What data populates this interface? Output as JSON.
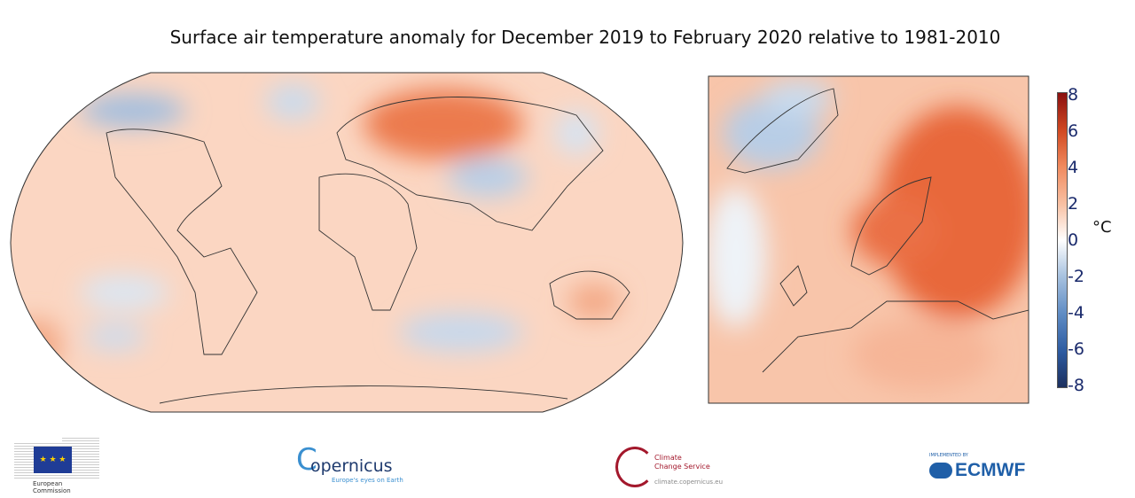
{
  "title": "Surface air temperature anomaly for December 2019 to February 2020 relative to 1981-2010",
  "colorbar": {
    "unit": "°C",
    "ticks": [
      "8",
      "6",
      "4",
      "2",
      "0",
      "-2",
      "-4",
      "-6",
      "-8"
    ],
    "range": [
      -8,
      8
    ],
    "colors": {
      "min": "#1c2f5e",
      "zero": "#ffffff",
      "max": "#8a1010"
    }
  },
  "maps": {
    "global": {
      "projection": "Robinson"
    },
    "europe": {
      "region": "Europe"
    }
  },
  "logos": {
    "ec": {
      "line1": "European",
      "line2": "Commission"
    },
    "copernicus": {
      "name": "opernicus",
      "initial": "C",
      "tagline": "Europe's eyes on Earth"
    },
    "c3s": {
      "line1": "Climate",
      "line2": "Change Service",
      "url": "climate.copernicus.eu"
    },
    "ecmwf": {
      "implemented": "IMPLEMENTED BY",
      "name": "ECMWF"
    }
  }
}
